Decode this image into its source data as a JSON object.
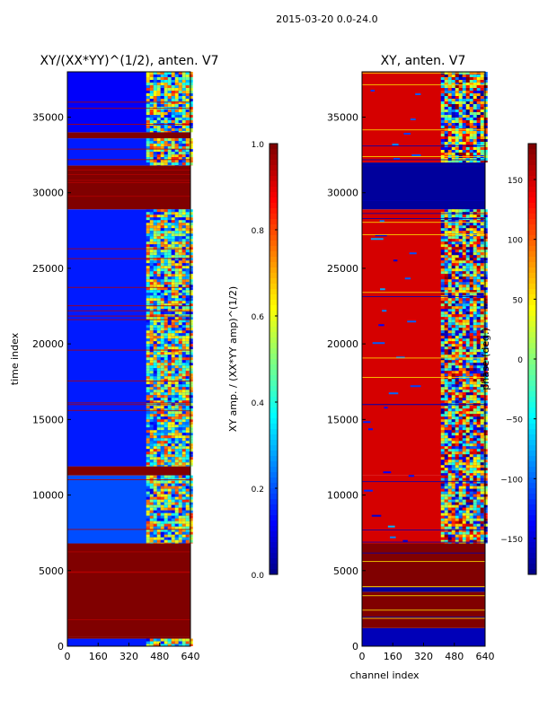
{
  "suptitle": "2015-03-20 0.0-24.0",
  "chart_data": [
    {
      "type": "heatmap",
      "title": "XY/(XX*YY)^(1/2), anten. V7",
      "xlabel": "",
      "ylabel": "time index",
      "xlim": [
        0,
        640
      ],
      "ylim": [
        0,
        38000
      ],
      "x_ticks": [
        "0",
        "160",
        "320",
        "480",
        "640"
      ],
      "y_ticks": [
        "0",
        "5000",
        "10000",
        "15000",
        "20000",
        "25000",
        "30000",
        "35000"
      ],
      "colorbar": {
        "label": "XY amp. / (XX*YY amp)^(1/2)",
        "range": [
          0.0,
          1.0
        ],
        "ticks": [
          "0.0",
          "0.2",
          "0.4",
          "0.6",
          "0.8",
          "1.0"
        ],
        "colormap": "jet"
      },
      "time_bands": [
        {
          "from": 0,
          "to": 500,
          "value": 0.15
        },
        {
          "from": 500,
          "to": 650,
          "value": 1.0
        },
        {
          "from": 650,
          "to": 6800,
          "value": 1.0
        },
        {
          "from": 6800,
          "to": 11300,
          "value": 0.2
        },
        {
          "from": 11300,
          "to": 11900,
          "value": 1.0
        },
        {
          "from": 11900,
          "to": 28900,
          "value": 0.15
        },
        {
          "from": 28900,
          "to": 31800,
          "value": 1.0
        },
        {
          "from": 31800,
          "to": 33600,
          "value": 0.15
        },
        {
          "from": 33600,
          "to": 34000,
          "value": 1.0
        },
        {
          "from": 34000,
          "to": 38000,
          "value": 0.12
        }
      ],
      "high_channel_region": {
        "from": 410,
        "to": 640,
        "value": 0.45
      }
    },
    {
      "type": "heatmap",
      "title": "XY, anten. V7",
      "xlabel": "channel index",
      "ylabel": "",
      "xlim": [
        0,
        640
      ],
      "ylim": [
        0,
        38000
      ],
      "x_ticks": [
        "0",
        "160",
        "320",
        "480",
        "640"
      ],
      "y_ticks": [
        "0",
        "5000",
        "10000",
        "15000",
        "20000",
        "25000",
        "30000",
        "35000"
      ],
      "colorbar": {
        "label": "phase (deg.)",
        "range": [
          -180,
          180
        ],
        "ticks": [
          "−150",
          "−100",
          "−50",
          "0",
          "50",
          "100",
          "150"
        ],
        "colormap": "jet"
      },
      "time_bands": [
        {
          "from": 0,
          "to": 1200,
          "value": -160
        },
        {
          "from": 1200,
          "to": 3600,
          "value": 180
        },
        {
          "from": 3600,
          "to": 3900,
          "value": -170
        },
        {
          "from": 3900,
          "to": 6800,
          "value": 180
        },
        {
          "from": 6800,
          "to": 11300,
          "value": 150
        },
        {
          "from": 11300,
          "to": 28900,
          "value": 150
        },
        {
          "from": 28900,
          "to": 32000,
          "value": -170
        },
        {
          "from": 32000,
          "to": 38000,
          "value": 150
        }
      ],
      "high_channel_region": {
        "from": 410,
        "to": 640,
        "value": 20
      }
    }
  ]
}
